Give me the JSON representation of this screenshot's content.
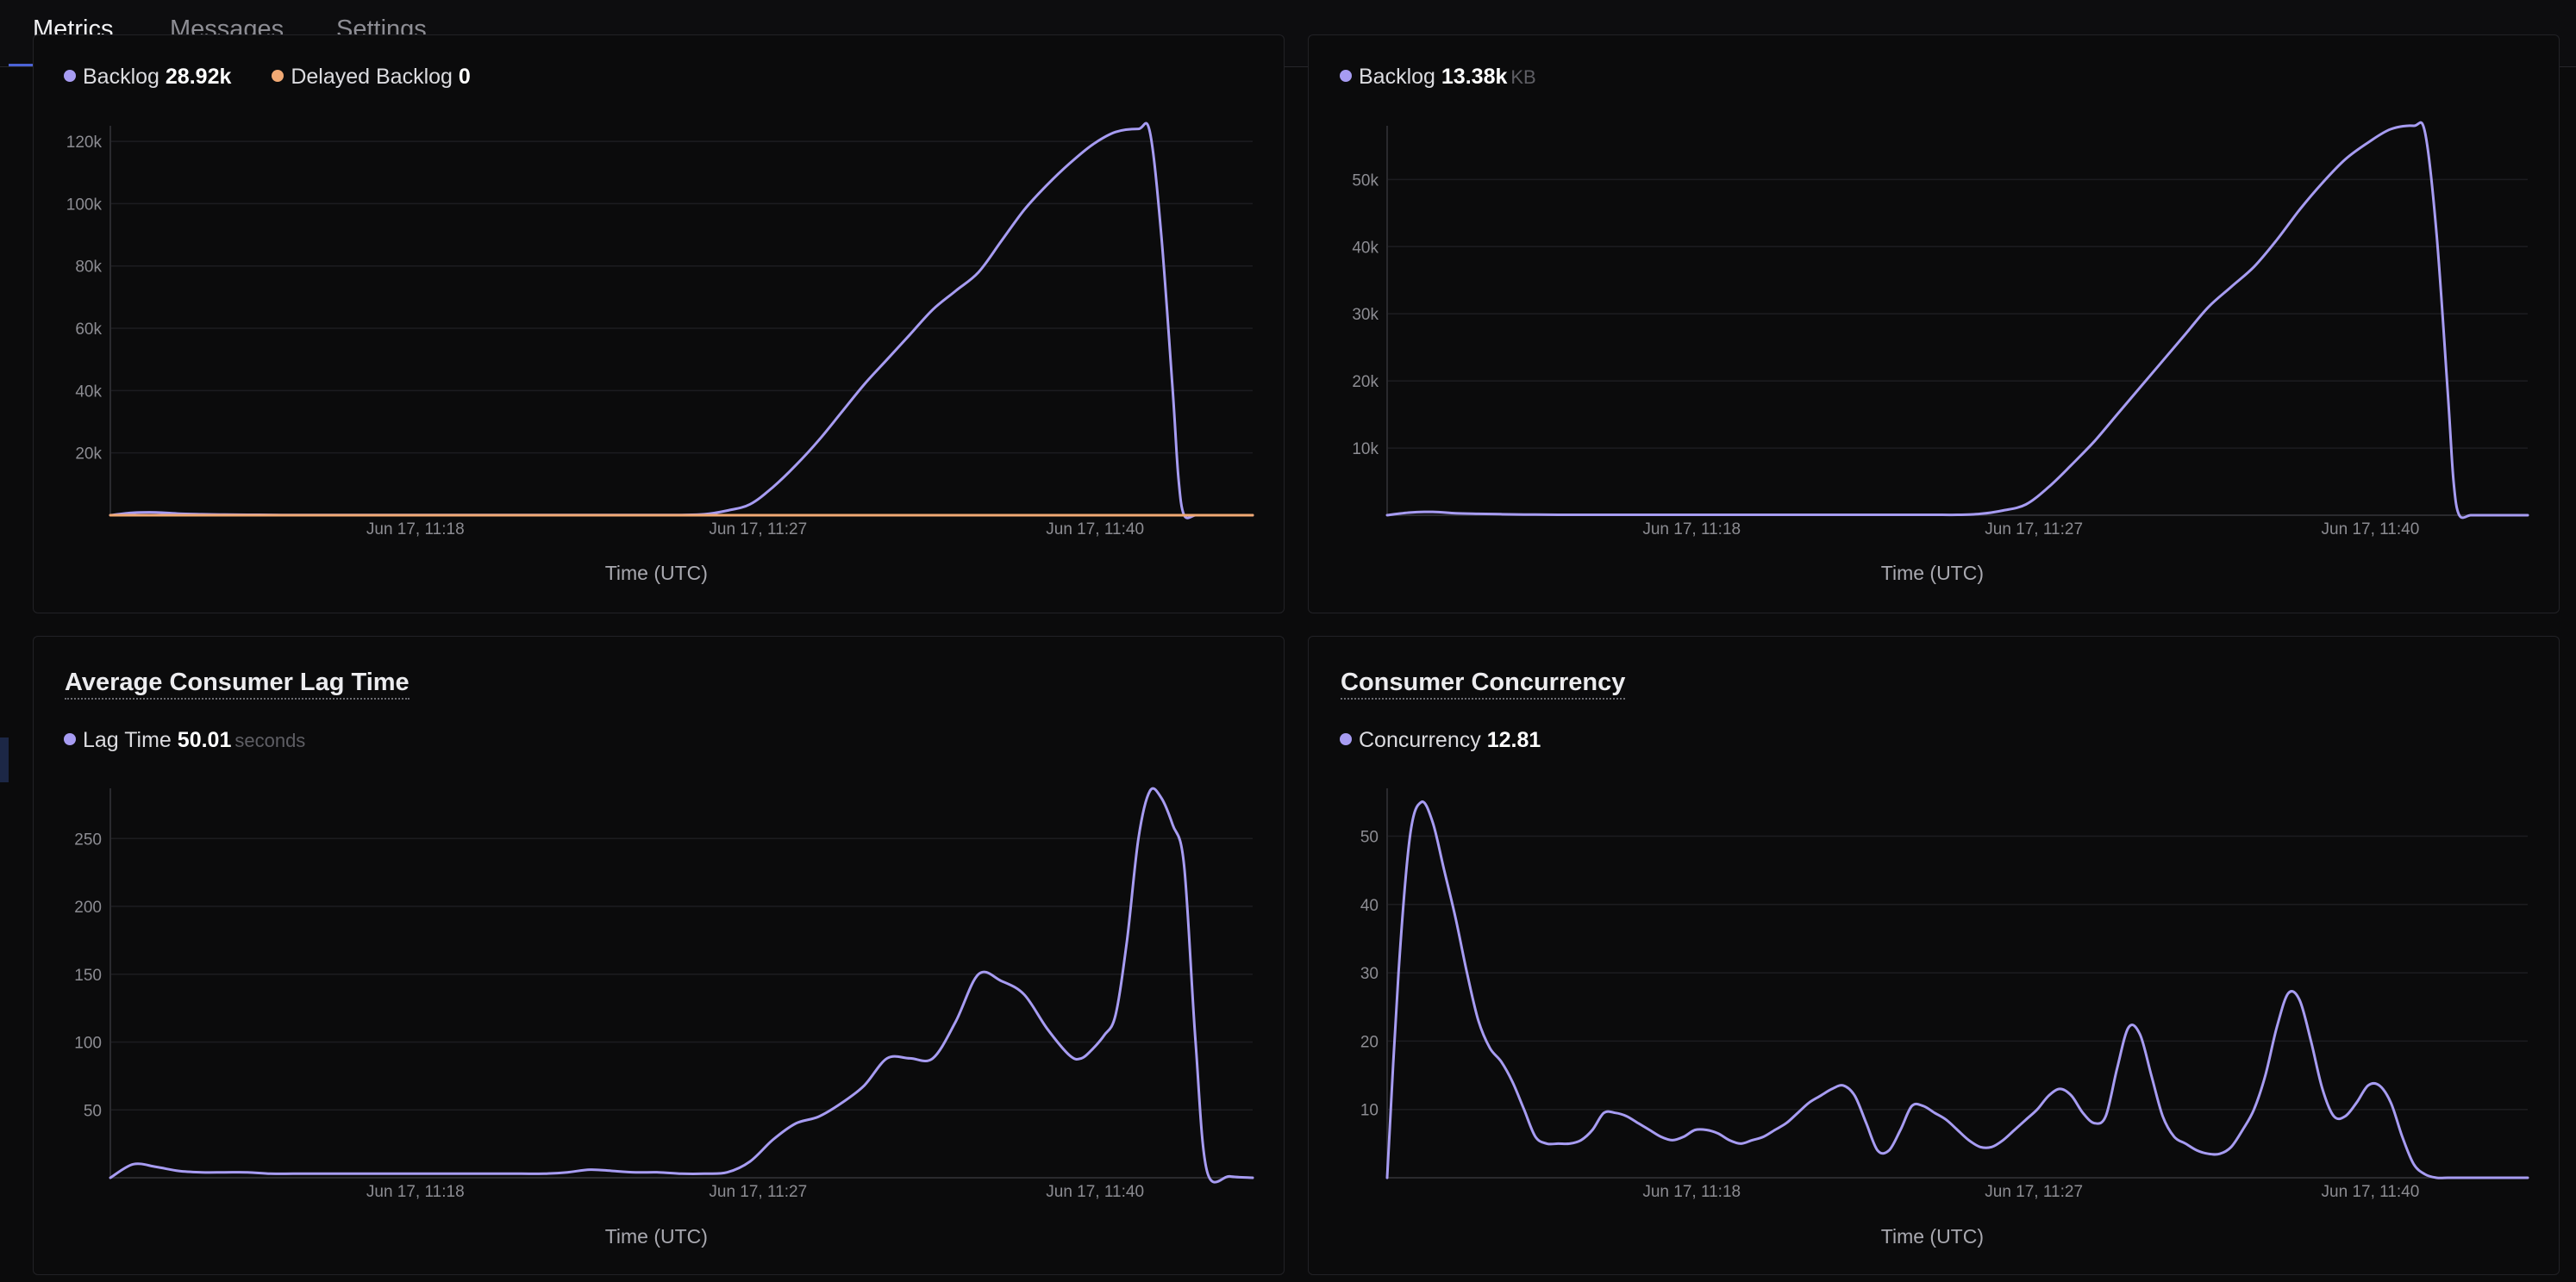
{
  "tabs": [
    {
      "label": "Metrics",
      "active": true
    },
    {
      "label": "Messages",
      "active": false
    },
    {
      "label": "Settings",
      "active": false
    }
  ],
  "colors": {
    "accent": "#4c63d6",
    "series_primary": "#a79cf2",
    "series_secondary": "#f1a974"
  },
  "panels": {
    "backlog_count": {
      "legend": [
        {
          "name": "Backlog",
          "value": "28.92k",
          "unit": "",
          "color": "#a79cf2"
        },
        {
          "name": "Delayed Backlog",
          "value": "0",
          "unit": "",
          "color": "#f1a974"
        }
      ]
    },
    "backlog_size": {
      "legend": [
        {
          "name": "Backlog",
          "value": "13.38k",
          "unit": "KB",
          "color": "#a79cf2"
        }
      ]
    },
    "lag_time": {
      "title": "Average Consumer Lag Time",
      "legend": [
        {
          "name": "Lag Time",
          "value": "50.01",
          "unit": "seconds",
          "color": "#a79cf2"
        }
      ]
    },
    "concurrency": {
      "title": "Consumer Concurrency",
      "legend": [
        {
          "name": "Concurrency",
          "value": "12.81",
          "unit": "",
          "color": "#a79cf2"
        }
      ]
    }
  },
  "chart_data": [
    {
      "type": "line",
      "title": "",
      "xlabel": "Time (UTC)",
      "x_ticks": [
        "Jun 17, 11:18",
        "Jun 17, 11:27",
        "Jun 17, 11:40"
      ],
      "y_ticks": [
        "20k",
        "40k",
        "60k",
        "80k",
        "100k",
        "120k"
      ],
      "ylim": [
        0,
        125000
      ],
      "grid": true,
      "x": [
        0,
        2,
        4,
        6,
        8,
        10,
        12,
        14,
        16,
        18,
        20,
        22,
        24,
        26,
        28,
        30,
        32,
        34,
        36,
        38,
        40,
        42,
        44,
        46,
        48,
        50,
        52,
        54,
        56,
        58,
        60,
        62,
        64,
        66,
        68,
        70,
        72,
        74,
        76,
        78,
        80,
        82,
        84,
        86,
        88,
        90,
        91,
        92,
        93,
        93.5,
        94,
        95,
        96,
        98,
        100
      ],
      "series": [
        {
          "name": "Backlog",
          "color": "#a79cf2",
          "values": [
            0,
            800,
            900,
            500,
            300,
            200,
            150,
            100,
            80,
            80,
            80,
            80,
            80,
            80,
            80,
            80,
            80,
            80,
            80,
            80,
            80,
            80,
            80,
            80,
            80,
            80,
            300,
            1500,
            3500,
            9000,
            16000,
            24000,
            33000,
            42000,
            50000,
            58000,
            66000,
            72000,
            78000,
            88000,
            98000,
            106000,
            113000,
            119000,
            123000,
            124000,
            123000,
            90000,
            40000,
            12000,
            0,
            0,
            0,
            0,
            0
          ]
        },
        {
          "name": "Delayed Backlog",
          "color": "#f1a974",
          "values": [
            0,
            0,
            0,
            0,
            0,
            0,
            0,
            0,
            0,
            0,
            0,
            0,
            0,
            0,
            0,
            0,
            0,
            0,
            0,
            0,
            0,
            0,
            0,
            0,
            0,
            0,
            0,
            0,
            0,
            0,
            0,
            0,
            0,
            0,
            0,
            0,
            0,
            0,
            0,
            0,
            0,
            0,
            0,
            0,
            0,
            0,
            0,
            0,
            0,
            0,
            0,
            0,
            0,
            0,
            0
          ]
        }
      ]
    },
    {
      "type": "line",
      "title": "",
      "xlabel": "Time (UTC)",
      "x_ticks": [
        "Jun 17, 11:18",
        "Jun 17, 11:27",
        "Jun 17, 11:40"
      ],
      "y_ticks": [
        "10k",
        "20k",
        "30k",
        "40k",
        "50k"
      ],
      "ylim": [
        0,
        58000
      ],
      "grid": true,
      "x": [
        0,
        2,
        4,
        6,
        8,
        10,
        12,
        14,
        16,
        18,
        20,
        22,
        24,
        26,
        28,
        30,
        32,
        34,
        36,
        38,
        40,
        42,
        44,
        46,
        48,
        50,
        52,
        54,
        56,
        58,
        60,
        62,
        64,
        66,
        68,
        70,
        72,
        74,
        76,
        78,
        80,
        82,
        84,
        86,
        88,
        90,
        91,
        92,
        93,
        93.5,
        94,
        95,
        96,
        98,
        100
      ],
      "series": [
        {
          "name": "Backlog",
          "color": "#a79cf2",
          "values": [
            0,
            400,
            500,
            300,
            200,
            150,
            100,
            80,
            60,
            60,
            60,
            60,
            60,
            60,
            60,
            60,
            60,
            60,
            60,
            60,
            60,
            60,
            60,
            60,
            60,
            60,
            200,
            700,
            1600,
            4200,
            7500,
            11000,
            15000,
            19000,
            23000,
            27000,
            31000,
            34000,
            37000,
            41000,
            45500,
            49500,
            53000,
            55500,
            57500,
            58000,
            57000,
            42000,
            18000,
            5000,
            0,
            0,
            0,
            0,
            0
          ]
        }
      ]
    },
    {
      "type": "line",
      "title": "Average Consumer Lag Time",
      "xlabel": "Time (UTC)",
      "x_ticks": [
        "Jun 17, 11:18",
        "Jun 17, 11:27",
        "Jun 17, 11:40"
      ],
      "y_ticks": [
        "50",
        "100",
        "150",
        "200",
        "250"
      ],
      "ylim": [
        0,
        287
      ],
      "grid": true,
      "x": [
        0,
        2,
        4,
        6,
        8,
        10,
        12,
        14,
        16,
        18,
        20,
        22,
        24,
        26,
        28,
        30,
        32,
        34,
        36,
        38,
        40,
        42,
        44,
        46,
        48,
        50,
        52,
        54,
        56,
        58,
        60,
        62,
        64,
        66,
        68,
        70,
        72,
        74,
        76,
        78,
        80,
        82,
        84,
        85,
        86,
        87,
        88,
        89,
        90,
        91,
        92,
        93,
        94,
        95,
        96,
        98,
        100
      ],
      "series": [
        {
          "name": "Lag Time",
          "color": "#a79cf2",
          "values": [
            0,
            10,
            8,
            5,
            4,
            4,
            4,
            3,
            3,
            3,
            3,
            3,
            3,
            3,
            3,
            3,
            3,
            3,
            3,
            3,
            4,
            6,
            5,
            4,
            4,
            3,
            3,
            4,
            12,
            28,
            40,
            45,
            55,
            68,
            88,
            88,
            88,
            115,
            150,
            145,
            135,
            110,
            90,
            88,
            95,
            105,
            120,
            175,
            250,
            285,
            280,
            260,
            230,
            100,
            5,
            1,
            0
          ]
        }
      ]
    },
    {
      "type": "line",
      "title": "Consumer Concurrency",
      "xlabel": "Time (UTC)",
      "x_ticks": [
        "Jun 17, 11:18",
        "Jun 17, 11:27",
        "Jun 17, 11:40"
      ],
      "y_ticks": [
        "10",
        "20",
        "30",
        "40",
        "50"
      ],
      "ylim": [
        0,
        57
      ],
      "grid": true,
      "x": [
        0,
        1,
        2,
        3,
        4,
        5,
        6,
        7,
        8,
        9,
        10,
        11,
        12,
        13,
        14,
        15,
        16,
        17,
        18,
        19,
        20,
        21,
        22,
        23,
        24,
        25,
        26,
        27,
        28,
        29,
        30,
        31,
        32,
        33,
        34,
        35,
        36,
        37,
        38,
        39,
        40,
        41,
        42,
        43,
        44,
        45,
        46,
        47,
        48,
        49,
        50,
        51,
        52,
        53,
        54,
        55,
        56,
        57,
        58,
        59,
        60,
        61,
        62,
        63,
        64,
        65,
        66,
        67,
        68,
        69,
        70,
        71,
        72,
        73,
        74,
        75,
        76,
        77,
        78,
        79,
        80,
        81,
        82,
        83,
        84,
        85,
        86,
        87,
        88,
        89,
        90,
        91,
        92,
        93,
        94,
        95,
        96,
        97,
        98,
        99,
        100
      ],
      "series": [
        {
          "name": "Concurrency",
          "color": "#a79cf2",
          "values": [
            0,
            30,
            50,
            55,
            52,
            45,
            38,
            30,
            23,
            19,
            17,
            14,
            10,
            6,
            5,
            5,
            5,
            5.5,
            7,
            9.5,
            9.5,
            9,
            8,
            7,
            6,
            5.5,
            6,
            7,
            7,
            6.5,
            5.5,
            5,
            5.5,
            6,
            7,
            8,
            9.5,
            11,
            12,
            13,
            13.5,
            12,
            8,
            4,
            4,
            7,
            10.5,
            10.5,
            9.5,
            8.5,
            7,
            5.5,
            4.5,
            4.5,
            5.5,
            7,
            8.5,
            10,
            12,
            13,
            12,
            9.5,
            8,
            9,
            16,
            22,
            21,
            15,
            9,
            6,
            5,
            4,
            3.5,
            3.5,
            4.5,
            7,
            10,
            15,
            22,
            27,
            26,
            20,
            13,
            9,
            9,
            11,
            13.5,
            13.5,
            11,
            6,
            2,
            0.5,
            0,
            0,
            0,
            0,
            0,
            0,
            0,
            0,
            0
          ]
        }
      ]
    }
  ]
}
